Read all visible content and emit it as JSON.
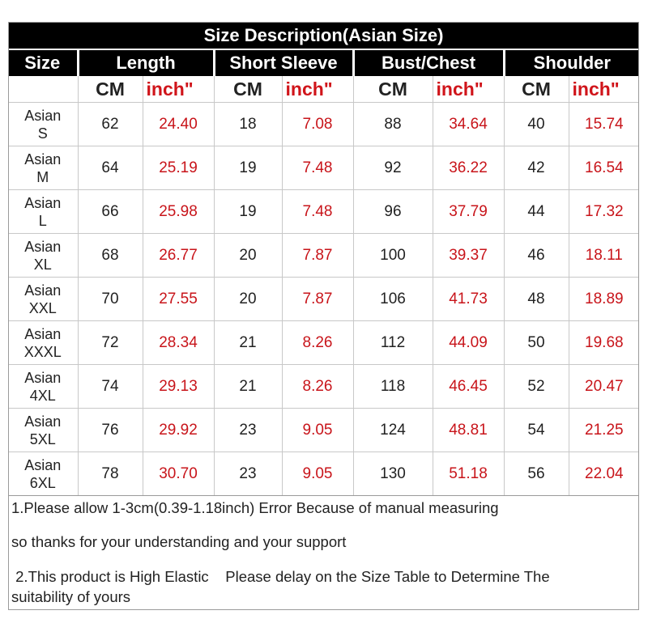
{
  "table": {
    "title": "Size Description(Asian Size)",
    "headers": [
      "Size",
      "Length",
      "Short Sleeve",
      "Bust/Chest",
      "Shoulder"
    ],
    "unit_cm": "CM",
    "unit_inch": "inch\"",
    "rows": [
      {
        "line1": "Asian",
        "line2": "S",
        "length_cm": "62",
        "length_in": "24.40",
        "sleeve_cm": "18",
        "sleeve_in": "7.08",
        "bust_cm": "88",
        "bust_in": "34.64",
        "shoulder_cm": "40",
        "shoulder_in": "15.74"
      },
      {
        "line1": "Asian",
        "line2": "M",
        "length_cm": "64",
        "length_in": "25.19",
        "sleeve_cm": "19",
        "sleeve_in": "7.48",
        "bust_cm": "92",
        "bust_in": "36.22",
        "shoulder_cm": "42",
        "shoulder_in": "16.54"
      },
      {
        "line1": "Asian",
        "line2": "L",
        "length_cm": "66",
        "length_in": "25.98",
        "sleeve_cm": "19",
        "sleeve_in": "7.48",
        "bust_cm": "96",
        "bust_in": "37.79",
        "shoulder_cm": "44",
        "shoulder_in": "17.32"
      },
      {
        "line1": "Asian",
        "line2": "XL",
        "length_cm": "68",
        "length_in": "26.77",
        "sleeve_cm": "20",
        "sleeve_in": "7.87",
        "bust_cm": "100",
        "bust_in": "39.37",
        "shoulder_cm": "46",
        "shoulder_in": "18.11"
      },
      {
        "line1": "Asian",
        "line2": "XXL",
        "length_cm": "70",
        "length_in": "27.55",
        "sleeve_cm": "20",
        "sleeve_in": "7.87",
        "bust_cm": "106",
        "bust_in": "41.73",
        "shoulder_cm": "48",
        "shoulder_in": "18.89"
      },
      {
        "line1": "Asian",
        "line2": "XXXL",
        "length_cm": "72",
        "length_in": "28.34",
        "sleeve_cm": "21",
        "sleeve_in": "8.26",
        "bust_cm": "112",
        "bust_in": "44.09",
        "shoulder_cm": "50",
        "shoulder_in": "19.68"
      },
      {
        "line1": "Asian",
        "line2": "4XL",
        "length_cm": "74",
        "length_in": "29.13",
        "sleeve_cm": "21",
        "sleeve_in": "8.26",
        "bust_cm": "118",
        "bust_in": "46.45",
        "shoulder_cm": "52",
        "shoulder_in": "20.47"
      },
      {
        "line1": "Asian",
        "line2": "5XL",
        "length_cm": "76",
        "length_in": "29.92",
        "sleeve_cm": "23",
        "sleeve_in": "9.05",
        "bust_cm": "124",
        "bust_in": "48.81",
        "shoulder_cm": "54",
        "shoulder_in": "21.25"
      },
      {
        "line1": "Asian",
        "line2": "6XL",
        "length_cm": "78",
        "length_in": "30.70",
        "sleeve_cm": "23",
        "sleeve_in": "9.05",
        "bust_cm": "130",
        "bust_in": "51.18",
        "shoulder_cm": "56",
        "shoulder_in": "22.04"
      }
    ]
  },
  "notes": {
    "line1": "1.Please allow 1-3cm(0.39-1.18inch) Error Because of manual measuring",
    "line2": "so thanks for your understanding and your support",
    "line3": " 2.This product is High Elastic    Please delay on the Size Table to Determine The",
    "line4": "suitability of yours"
  },
  "colors": {
    "header_bg": "#000000",
    "inch_text": "#c8141a"
  }
}
